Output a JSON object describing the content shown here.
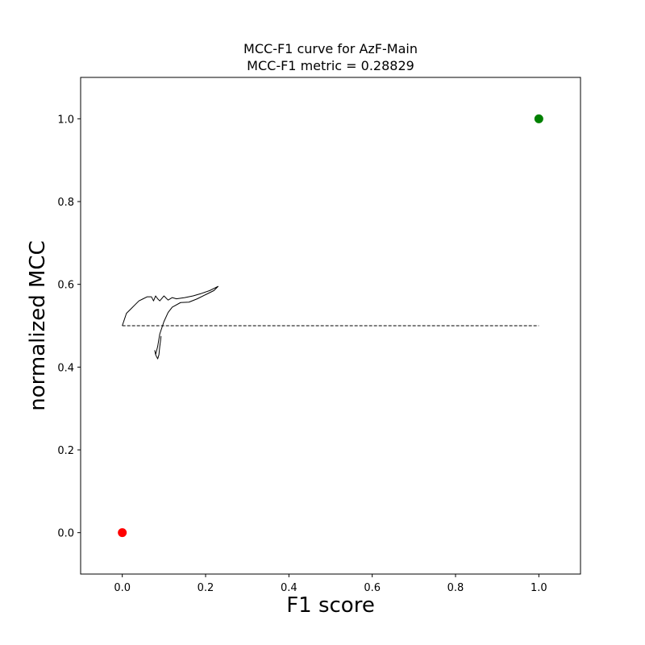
{
  "chart_data": {
    "type": "line",
    "title": "MCC-F1 curve for AzF-Main",
    "subtitle": "MCC-F1 metric = 0.28829",
    "xlabel": "F1 score",
    "ylabel": "normalized MCC",
    "xlim": [
      -0.1,
      1.1
    ],
    "ylim": [
      -0.1,
      1.1
    ],
    "xticks": [
      0.0,
      0.2,
      0.4,
      0.6,
      0.8,
      1.0
    ],
    "yticks": [
      0.0,
      0.2,
      0.4,
      0.6,
      0.8,
      1.0
    ],
    "grid": false,
    "series": [
      {
        "role": "curve",
        "style": "solid",
        "color": "#000000",
        "x": [
          0.0,
          0.005,
          0.01,
          0.02,
          0.03,
          0.04,
          0.05,
          0.06,
          0.07,
          0.075,
          0.08,
          0.085,
          0.09,
          0.1,
          0.11,
          0.12,
          0.13,
          0.15,
          0.17,
          0.19,
          0.21,
          0.23,
          0.22,
          0.2,
          0.18,
          0.16,
          0.14,
          0.12,
          0.11,
          0.1,
          0.09,
          0.085,
          0.08,
          0.078,
          0.08,
          0.085,
          0.088,
          0.09,
          0.092,
          0.093
        ],
        "y": [
          0.5,
          0.515,
          0.53,
          0.54,
          0.55,
          0.56,
          0.565,
          0.57,
          0.57,
          0.56,
          0.572,
          0.565,
          0.56,
          0.572,
          0.562,
          0.568,
          0.565,
          0.568,
          0.572,
          0.578,
          0.585,
          0.595,
          0.585,
          0.575,
          0.565,
          0.557,
          0.556,
          0.545,
          0.532,
          0.51,
          0.48,
          0.45,
          0.43,
          0.44,
          0.43,
          0.42,
          0.43,
          0.45,
          0.465,
          0.475
        ]
      },
      {
        "role": "random-baseline",
        "style": "dashed",
        "color": "#000000",
        "x": [
          0.0,
          1.0
        ],
        "y": [
          0.5,
          0.5
        ]
      }
    ],
    "points": [
      {
        "x": 0.0,
        "y": 0.0,
        "color": "#ff0000"
      },
      {
        "x": 1.0,
        "y": 1.0,
        "color": "#008000"
      }
    ]
  }
}
